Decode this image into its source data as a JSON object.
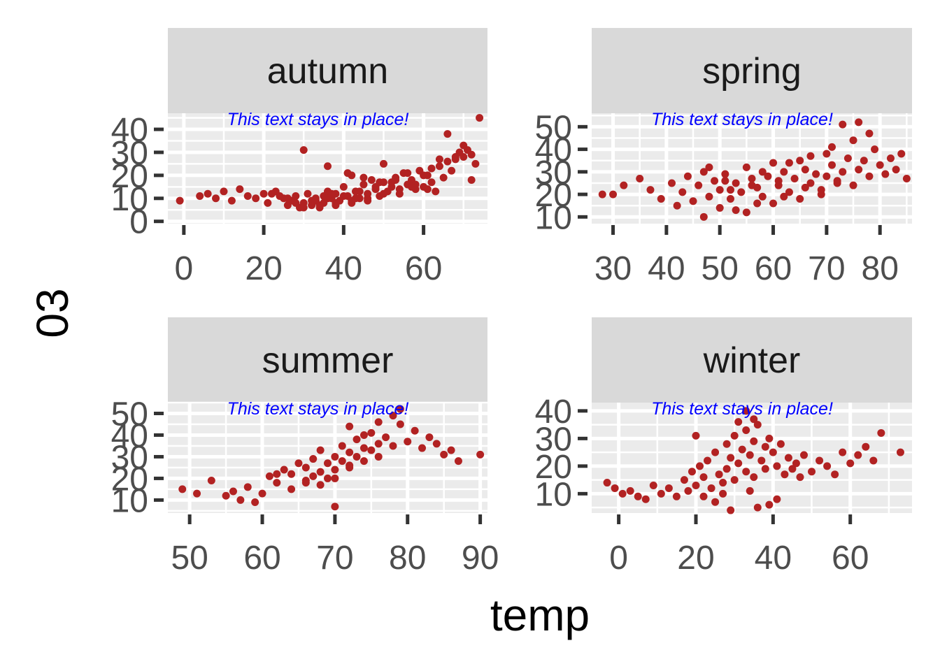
{
  "chart_data": {
    "type": "scatter",
    "xlabel": "temp",
    "ylabel": "03",
    "annotation": "This text stays in place!",
    "point_color": "#B22222",
    "annotation_color": "#0000FF",
    "facets": [
      {
        "name": "autumn",
        "xlim": [
          -4,
          76
        ],
        "ylim": [
          -1,
          47
        ],
        "xticks": [
          0,
          20,
          40,
          60
        ],
        "yticks": [
          0,
          10,
          20,
          30,
          40
        ],
        "x": [
          -1,
          4,
          6,
          8,
          10,
          12,
          14,
          16,
          18,
          20,
          21,
          23,
          25,
          26,
          27,
          28,
          29,
          30,
          30,
          31,
          32,
          33,
          33,
          34,
          35,
          35,
          36,
          37,
          38,
          38,
          39,
          40,
          41,
          42,
          42,
          43,
          44,
          45,
          46,
          46,
          47,
          48,
          49,
          50,
          50,
          51,
          52,
          53,
          54,
          55,
          56,
          57,
          58,
          59,
          60,
          61,
          62,
          63,
          64,
          65,
          66,
          67,
          68,
          69,
          70,
          71,
          72,
          73,
          74,
          72,
          70,
          68,
          66,
          64,
          62,
          60,
          58,
          56,
          54,
          52,
          50,
          48,
          46,
          44,
          42,
          40,
          38,
          36,
          34,
          32,
          30,
          28,
          26,
          24,
          22,
          36,
          41,
          45,
          49,
          53,
          57,
          61,
          33,
          37,
          43
        ],
        "y": [
          9,
          11,
          12,
          10,
          13,
          9,
          14,
          11,
          10,
          12,
          8,
          13,
          10,
          7,
          9,
          11,
          6,
          8,
          31,
          12,
          7,
          10,
          9,
          6,
          11,
          8,
          13,
          10,
          7,
          12,
          9,
          15,
          11,
          8,
          20,
          13,
          10,
          16,
          12,
          9,
          18,
          14,
          11,
          25,
          17,
          13,
          15,
          19,
          12,
          21,
          16,
          18,
          14,
          22,
          15,
          20,
          17,
          13,
          24,
          19,
          26,
          22,
          27,
          30,
          28,
          31,
          29,
          25,
          45,
          18,
          33,
          28,
          38,
          27,
          23,
          20,
          16,
          21,
          14,
          17,
          12,
          15,
          10,
          13,
          9,
          11,
          8,
          10,
          7,
          9,
          6,
          8,
          10,
          11,
          12,
          24,
          21,
          19,
          17,
          18,
          15,
          14,
          9,
          12,
          10
        ]
      },
      {
        "name": "spring",
        "xlim": [
          26,
          86
        ],
        "ylim": [
          7,
          56
        ],
        "xticks": [
          30,
          40,
          50,
          60,
          70,
          80
        ],
        "yticks": [
          10,
          20,
          30,
          40,
          50
        ],
        "x": [
          28,
          30,
          32,
          35,
          37,
          39,
          41,
          42,
          43,
          44,
          45,
          46,
          47,
          48,
          49,
          50,
          50,
          51,
          52,
          53,
          54,
          55,
          55,
          56,
          57,
          58,
          59,
          60,
          60,
          61,
          62,
          63,
          64,
          65,
          65,
          66,
          67,
          68,
          69,
          70,
          70,
          71,
          72,
          73,
          74,
          75,
          76,
          77,
          78,
          79,
          80,
          81,
          82,
          83,
          84,
          85,
          73,
          76,
          47,
          53,
          57,
          62,
          66,
          69,
          72,
          48,
          51,
          58,
          63,
          67,
          71,
          75,
          78,
          52,
          56,
          61
        ],
        "y": [
          20,
          20,
          24,
          27,
          22,
          18,
          25,
          15,
          21,
          28,
          17,
          24,
          30,
          19,
          26,
          22,
          14,
          29,
          18,
          25,
          21,
          32,
          12,
          27,
          23,
          19,
          28,
          34,
          16,
          24,
          30,
          21,
          27,
          35,
          18,
          31,
          25,
          29,
          22,
          38,
          28,
          33,
          26,
          30,
          36,
          24,
          31,
          35,
          28,
          40,
          33,
          29,
          36,
          31,
          38,
          27,
          51,
          52,
          10,
          13,
          16,
          19,
          23,
          20,
          25,
          32,
          26,
          30,
          34,
          37,
          41,
          44,
          47,
          22,
          24,
          26
        ]
      },
      {
        "name": "summer",
        "xlim": [
          47,
          91
        ],
        "ylim": [
          4,
          55
        ],
        "xticks": [
          50,
          60,
          70,
          80,
          90
        ],
        "yticks": [
          10,
          20,
          30,
          40,
          50
        ],
        "x": [
          49,
          51,
          53,
          55,
          56,
          57,
          58,
          59,
          60,
          61,
          62,
          63,
          64,
          64,
          65,
          66,
          66,
          67,
          67,
          68,
          68,
          69,
          69,
          70,
          70,
          71,
          71,
          72,
          72,
          73,
          73,
          74,
          74,
          75,
          75,
          76,
          76,
          77,
          78,
          79,
          80,
          81,
          82,
          83,
          84,
          85,
          86,
          87,
          90,
          79,
          70,
          66,
          62,
          72,
          74,
          76,
          78,
          68,
          70,
          72
        ],
        "y": [
          15,
          13,
          19,
          12,
          14,
          10,
          16,
          9,
          13,
          21,
          18,
          24,
          15,
          22,
          27,
          19,
          25,
          21,
          29,
          23,
          33,
          20,
          27,
          30,
          24,
          35,
          28,
          32,
          26,
          38,
          30,
          34,
          28,
          41,
          33,
          36,
          30,
          39,
          35,
          52,
          37,
          42,
          34,
          39,
          36,
          31,
          33,
          28,
          31,
          45,
          7,
          18,
          22,
          44,
          40,
          46,
          49,
          17,
          20,
          25
        ]
      },
      {
        "name": "winter",
        "xlim": [
          -7,
          76
        ],
        "ylim": [
          3,
          43
        ],
        "xticks": [
          0,
          20,
          40,
          60
        ],
        "yticks": [
          10,
          20,
          30,
          40
        ],
        "x": [
          -3,
          -1,
          1,
          3,
          5,
          7,
          9,
          11,
          13,
          15,
          17,
          18,
          19,
          20,
          21,
          22,
          23,
          24,
          25,
          26,
          27,
          28,
          28,
          29,
          30,
          30,
          31,
          32,
          33,
          33,
          34,
          35,
          35,
          36,
          37,
          38,
          38,
          39,
          40,
          41,
          42,
          43,
          44,
          45,
          46,
          47,
          48,
          50,
          52,
          54,
          56,
          58,
          60,
          62,
          64,
          66,
          68,
          73,
          31,
          33,
          35,
          22,
          25,
          39,
          29,
          36,
          41,
          27,
          34,
          20
        ],
        "y": [
          14,
          12,
          10,
          11,
          9,
          8,
          13,
          10,
          12,
          9,
          15,
          11,
          18,
          13,
          20,
          16,
          22,
          12,
          25,
          17,
          14,
          28,
          19,
          23,
          15,
          31,
          21,
          26,
          18,
          33,
          24,
          29,
          16,
          35,
          22,
          27,
          19,
          30,
          25,
          20,
          28,
          17,
          23,
          19,
          21,
          16,
          24,
          18,
          22,
          20,
          17,
          25,
          21,
          24,
          27,
          22,
          32,
          25,
          36,
          40,
          37,
          9,
          7,
          6,
          4,
          5,
          8,
          10,
          11,
          31
        ]
      }
    ]
  }
}
